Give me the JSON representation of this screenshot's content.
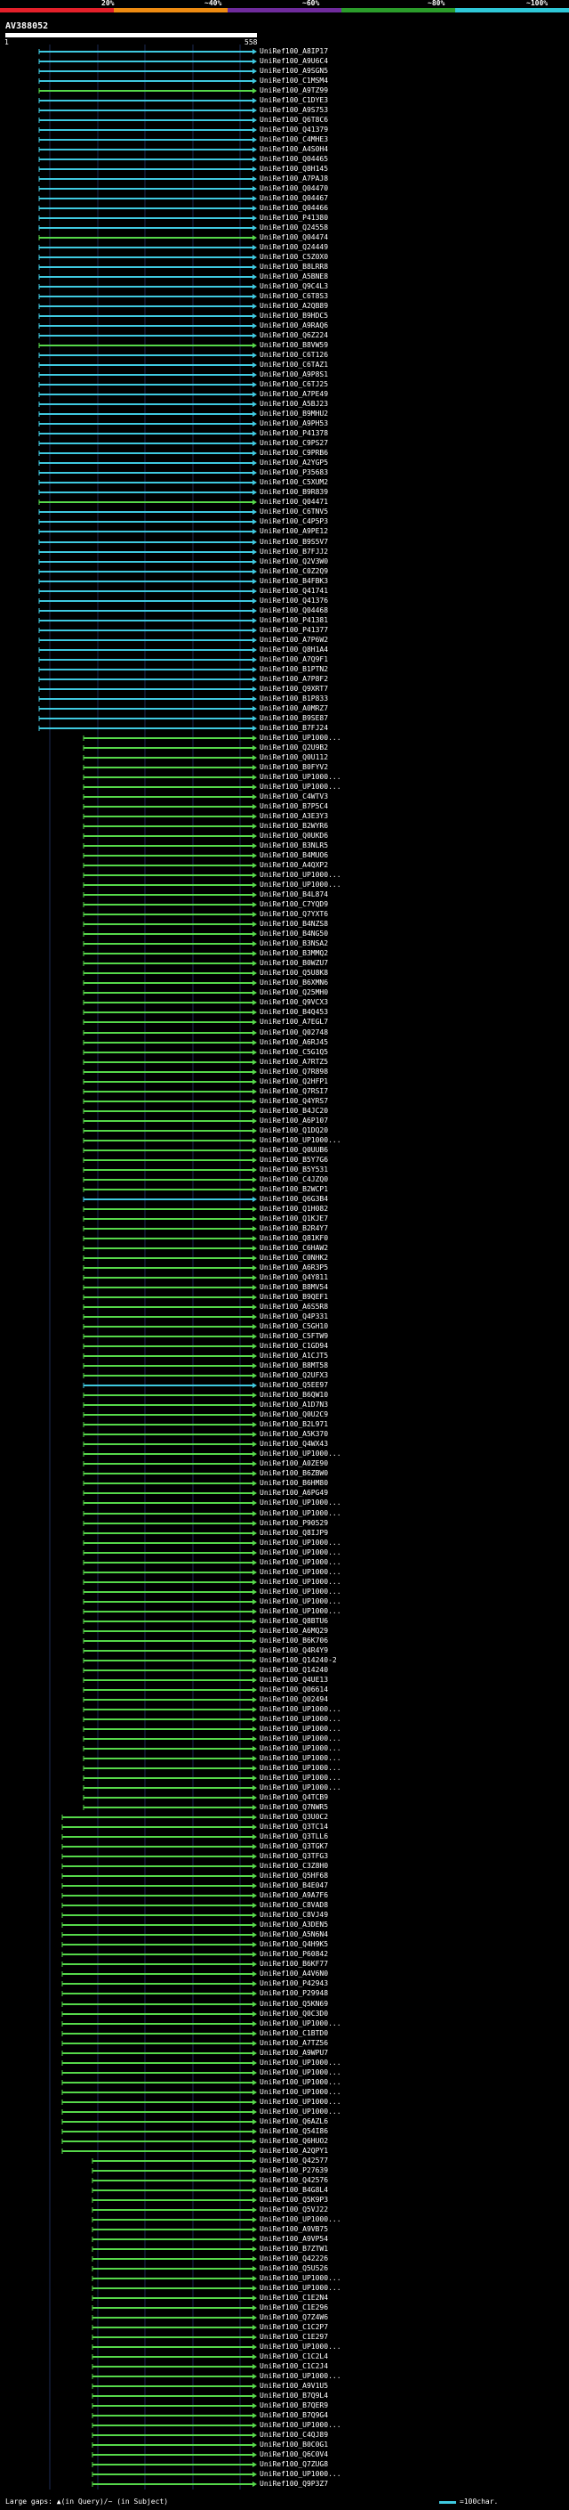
{
  "legend": {
    "pcts": [
      "20%",
      "~40%",
      "~60%",
      "~80%",
      "~100%"
    ],
    "colors": [
      "#e4202a",
      "#ee8b12",
      "#6f2b9c",
      "#2b9c2b",
      "#2fc8d8"
    ]
  },
  "query": {
    "name": "AV388052",
    "start": "1",
    "end": "558"
  },
  "footer": {
    "gaps_text": "Large gaps: ▲(in Query)/~ (in Subject)",
    "scale_text": "=100char."
  },
  "colors": {
    "green": "#56d84a",
    "cyan": "#3fc9e0"
  },
  "hits": [
    {
      "label": "UniRef100_A8IP17",
      "c": "c"
    },
    {
      "label": "UniRef100_A9U6C4",
      "c": "c"
    },
    {
      "label": "UniRef100_A9SGN5",
      "c": "c"
    },
    {
      "label": "UniRef100_C1MSM4",
      "c": "c"
    },
    {
      "label": "UniRef100_A9TZ99",
      "c": "g"
    },
    {
      "label": "UniRef100_C1DYE3",
      "c": "c"
    },
    {
      "label": "UniRef100_A9S753",
      "c": "c"
    },
    {
      "label": "UniRef100_Q6T8C6",
      "c": "c"
    },
    {
      "label": "UniRef100_Q41379",
      "c": "c"
    },
    {
      "label": "UniRef100_C4MHE3",
      "c": "c"
    },
    {
      "label": "UniRef100_A4S0H4",
      "c": "c"
    },
    {
      "label": "UniRef100_Q04465",
      "c": "c"
    },
    {
      "label": "UniRef100_Q8H145",
      "c": "c"
    },
    {
      "label": "UniRef100_A7PAJ8",
      "c": "c"
    },
    {
      "label": "UniRef100_Q04470",
      "c": "c"
    },
    {
      "label": "UniRef100_Q04467",
      "c": "c"
    },
    {
      "label": "UniRef100_Q04466",
      "c": "c"
    },
    {
      "label": "UniRef100_P41380",
      "c": "c"
    },
    {
      "label": "UniRef100_Q24558",
      "c": "c"
    },
    {
      "label": "UniRef100_Q04474",
      "c": "g"
    },
    {
      "label": "UniRef100_Q24449",
      "c": "c"
    },
    {
      "label": "UniRef100_C5Z0X0",
      "c": "c"
    },
    {
      "label": "UniRef100_B8LRR8",
      "c": "c"
    },
    {
      "label": "UniRef100_A5BNE8",
      "c": "c"
    },
    {
      "label": "UniRef100_Q9C4L3",
      "c": "c"
    },
    {
      "label": "UniRef100_C6T8S3",
      "c": "c"
    },
    {
      "label": "UniRef100_A2QB89",
      "c": "c"
    },
    {
      "label": "UniRef100_B9HDC5",
      "c": "c"
    },
    {
      "label": "UniRef100_A9RAQ6",
      "c": "c"
    },
    {
      "label": "UniRef100_Q6Z224",
      "c": "c"
    },
    {
      "label": "UniRef100_B8VW59",
      "c": "g"
    },
    {
      "label": "UniRef100_C6T126",
      "c": "c"
    },
    {
      "label": "UniRef100_C6TAZ1",
      "c": "c"
    },
    {
      "label": "UniRef100_A9P8S1",
      "c": "c"
    },
    {
      "label": "UniRef100_C6TJ25",
      "c": "c"
    },
    {
      "label": "UniRef100_A7PE49",
      "c": "c"
    },
    {
      "label": "UniRef100_A5BJ23",
      "c": "c"
    },
    {
      "label": "UniRef100_B9MHU2",
      "c": "c"
    },
    {
      "label": "UniRef100_A9PH53",
      "c": "c"
    },
    {
      "label": "UniRef100_P41378",
      "c": "c"
    },
    {
      "label": "UniRef100_C9PS27",
      "c": "c"
    },
    {
      "label": "UniRef100_C9PRB6",
      "c": "c"
    },
    {
      "label": "UniRef100_A2YGP5",
      "c": "c"
    },
    {
      "label": "UniRef100_P35683",
      "c": "c"
    },
    {
      "label": "UniRef100_C5XUM2",
      "c": "c"
    },
    {
      "label": "UniRef100_B9R839",
      "c": "c"
    },
    {
      "label": "UniRef100_Q04471",
      "c": "g"
    },
    {
      "label": "UniRef100_C6TNV5",
      "c": "c"
    },
    {
      "label": "UniRef100_C4P5P3",
      "c": "c"
    },
    {
      "label": "UniRef100_A9PE12",
      "c": "c"
    },
    {
      "label": "UniRef100_B9S5V7",
      "c": "c"
    },
    {
      "label": "UniRef100_B7FJJ2",
      "c": "c"
    },
    {
      "label": "UniRef100_Q2V3W0",
      "c": "c"
    },
    {
      "label": "UniRef100_C0Z2Q9",
      "c": "c"
    },
    {
      "label": "UniRef100_B4FBK3",
      "c": "c"
    },
    {
      "label": "UniRef100_Q41741",
      "c": "c"
    },
    {
      "label": "UniRef100_Q41376",
      "c": "c"
    },
    {
      "label": "UniRef100_Q04468",
      "c": "c"
    },
    {
      "label": "UniRef100_P41381",
      "c": "c"
    },
    {
      "label": "UniRef100_P41377",
      "c": "c"
    },
    {
      "label": "UniRef100_A7P6W2",
      "c": "c"
    },
    {
      "label": "UniRef100_Q8H1A4",
      "c": "c"
    },
    {
      "label": "UniRef100_A7Q9F1",
      "c": "c"
    },
    {
      "label": "UniRef100_B1PTN2",
      "c": "c"
    },
    {
      "label": "UniRef100_A7P8F2",
      "c": "c"
    },
    {
      "label": "UniRef100_Q9XRT7",
      "c": "c"
    },
    {
      "label": "UniRef100_B1P833",
      "c": "c"
    },
    {
      "label": "UniRef100_A0MRZ7",
      "c": "c"
    },
    {
      "label": "UniRef100_B9SE87",
      "c": "c"
    },
    {
      "label": "UniRef100_B7FJ24",
      "c": "c"
    },
    {
      "label": "UniRef100_UP1000...",
      "c": "g"
    },
    {
      "label": "UniRef100_Q2U9B2",
      "c": "g"
    },
    {
      "label": "UniRef100_Q0U112",
      "c": "g"
    },
    {
      "label": "UniRef100_B0FYV2",
      "c": "g"
    },
    {
      "label": "UniRef100_UP1000...",
      "c": "g"
    },
    {
      "label": "UniRef100_UP1000...",
      "c": "g"
    },
    {
      "label": "UniRef100_C4WTV3",
      "c": "g"
    },
    {
      "label": "UniRef100_B7P5C4",
      "c": "g"
    },
    {
      "label": "UniRef100_A3E3Y3",
      "c": "g"
    },
    {
      "label": "UniRef100_B2WYR6",
      "c": "g"
    },
    {
      "label": "UniRef100_Q0UKD6",
      "c": "g"
    },
    {
      "label": "UniRef100_B3NLR5",
      "c": "g"
    },
    {
      "label": "UniRef100_B4MUO6",
      "c": "g"
    },
    {
      "label": "UniRef100_A4QXP2",
      "c": "g"
    },
    {
      "label": "UniRef100_UP1000...",
      "c": "g"
    },
    {
      "label": "UniRef100_UP1000...",
      "c": "g"
    },
    {
      "label": "UniRef100_B4L874",
      "c": "g"
    },
    {
      "label": "UniRef100_C7YQD9",
      "c": "g"
    },
    {
      "label": "UniRef100_Q7YXT6",
      "c": "g"
    },
    {
      "label": "UniRef100_B4NZS8",
      "c": "g"
    },
    {
      "label": "UniRef100_B4NG50",
      "c": "g"
    },
    {
      "label": "UniRef100_B3NSA2",
      "c": "g"
    },
    {
      "label": "UniRef100_B3MMQ2",
      "c": "g"
    },
    {
      "label": "UniRef100_B0WZU7",
      "c": "g"
    },
    {
      "label": "UniRef100_Q5U8K8",
      "c": "g"
    },
    {
      "label": "UniRef100_B6XMN6",
      "c": "g"
    },
    {
      "label": "UniRef100_Q25MH0",
      "c": "g"
    },
    {
      "label": "UniRef100_Q9VCX3",
      "c": "g"
    },
    {
      "label": "UniRef100_B4Q453",
      "c": "g"
    },
    {
      "label": "UniRef100_A7EGL7",
      "c": "g"
    },
    {
      "label": "UniRef100_Q02748",
      "c": "g"
    },
    {
      "label": "UniRef100_A6RJ45",
      "c": "g"
    },
    {
      "label": "UniRef100_C5G1Q5",
      "c": "g"
    },
    {
      "label": "UniRef100_A7RTZ5",
      "c": "g"
    },
    {
      "label": "UniRef100_Q7R898",
      "c": "g"
    },
    {
      "label": "UniRef100_Q2HFP1",
      "c": "g"
    },
    {
      "label": "UniRef100_Q7RSI7",
      "c": "g"
    },
    {
      "label": "UniRef100_Q4YRS7",
      "c": "g"
    },
    {
      "label": "UniRef100_B4JC20",
      "c": "g"
    },
    {
      "label": "UniRef100_A6P107",
      "c": "g"
    },
    {
      "label": "UniRef100_Q1DQ20",
      "c": "g"
    },
    {
      "label": "UniRef100_UP1000...",
      "c": "g"
    },
    {
      "label": "UniRef100_Q0UUB6",
      "c": "g"
    },
    {
      "label": "UniRef100_B5Y7G6",
      "c": "g"
    },
    {
      "label": "UniRef100_B5Y531",
      "c": "g"
    },
    {
      "label": "UniRef100_C4JZQ0",
      "c": "g"
    },
    {
      "label": "UniRef100_B2WCP1",
      "c": "g"
    },
    {
      "label": "UniRef100_Q6G3B4",
      "c": "c"
    },
    {
      "label": "UniRef100_Q1H082",
      "c": "g"
    },
    {
      "label": "UniRef100_Q1KJE7",
      "c": "g"
    },
    {
      "label": "UniRef100_B2R4Y7",
      "c": "g"
    },
    {
      "label": "UniRef100_Q81KF0",
      "c": "g"
    },
    {
      "label": "UniRef100_C6HAW2",
      "c": "g"
    },
    {
      "label": "UniRef100_C0NHK2",
      "c": "g"
    },
    {
      "label": "UniRef100_A6R3P5",
      "c": "g"
    },
    {
      "label": "UniRef100_Q4Y811",
      "c": "g"
    },
    {
      "label": "UniRef100_B8MV54",
      "c": "g"
    },
    {
      "label": "UniRef100_B9QEF1",
      "c": "g"
    },
    {
      "label": "UniRef100_A6S5R8",
      "c": "g"
    },
    {
      "label": "UniRef100_Q4P331",
      "c": "g"
    },
    {
      "label": "UniRef100_C5GH10",
      "c": "g"
    },
    {
      "label": "UniRef100_C5FTW9",
      "c": "g"
    },
    {
      "label": "UniRef100_C1GD94",
      "c": "g"
    },
    {
      "label": "UniRef100_A1CJT5",
      "c": "g"
    },
    {
      "label": "UniRef100_B8MT58",
      "c": "g"
    },
    {
      "label": "UniRef100_Q2UFX3",
      "c": "g"
    },
    {
      "label": "UniRef100_Q5EE97",
      "c": "c"
    },
    {
      "label": "UniRef100_B6QW10",
      "c": "g"
    },
    {
      "label": "UniRef100_A1D7N3",
      "c": "g"
    },
    {
      "label": "UniRef100_Q0U2C9",
      "c": "g"
    },
    {
      "label": "UniRef100_B2L971",
      "c": "g"
    },
    {
      "label": "UniRef100_A5K370",
      "c": "g"
    },
    {
      "label": "UniRef100_Q4WX43",
      "c": "g"
    },
    {
      "label": "UniRef100_UP1000...",
      "c": "g"
    },
    {
      "label": "UniRef100_A0ZE90",
      "c": "g"
    },
    {
      "label": "UniRef100_B6ZBW0",
      "c": "g"
    },
    {
      "label": "UniRef100_B6HM80",
      "c": "g"
    },
    {
      "label": "UniRef100_A6PG49",
      "c": "g"
    },
    {
      "label": "UniRef100_UP1000...",
      "c": "g"
    },
    {
      "label": "UniRef100_UP1000...",
      "c": "g"
    },
    {
      "label": "UniRef100_P90529",
      "c": "g"
    },
    {
      "label": "UniRef100_Q8IJP9",
      "c": "g"
    },
    {
      "label": "UniRef100_UP1000...",
      "c": "g"
    },
    {
      "label": "UniRef100_UP1000...",
      "c": "g"
    },
    {
      "label": "UniRef100_UP1000...",
      "c": "g"
    },
    {
      "label": "UniRef100_UP1000...",
      "c": "g"
    },
    {
      "label": "UniRef100_UP1000...",
      "c": "g"
    },
    {
      "label": "UniRef100_UP1000...",
      "c": "g"
    },
    {
      "label": "UniRef100_UP1000...",
      "c": "g"
    },
    {
      "label": "UniRef100_UP1000...",
      "c": "g"
    },
    {
      "label": "UniRef100_Q8BTU6",
      "c": "g"
    },
    {
      "label": "UniRef100_A6MQ29",
      "c": "g"
    },
    {
      "label": "UniRef100_B6K706",
      "c": "g"
    },
    {
      "label": "UniRef100_Q4R4Y9",
      "c": "g"
    },
    {
      "label": "UniRef100_Q14240-2",
      "c": "g"
    },
    {
      "label": "UniRef100_Q14240",
      "c": "g"
    },
    {
      "label": "UniRef100_Q4UE13",
      "c": "g"
    },
    {
      "label": "UniRef100_Q06614",
      "c": "g"
    },
    {
      "label": "UniRef100_Q02494",
      "c": "g"
    },
    {
      "label": "UniRef100_UP1000...",
      "c": "g"
    },
    {
      "label": "UniRef100_UP1000...",
      "c": "g"
    },
    {
      "label": "UniRef100_UP1000...",
      "c": "g"
    },
    {
      "label": "UniRef100_UP1000...",
      "c": "g"
    },
    {
      "label": "UniRef100_UP1000...",
      "c": "g"
    },
    {
      "label": "UniRef100_UP1000...",
      "c": "g"
    },
    {
      "label": "UniRef100_UP1000...",
      "c": "g"
    },
    {
      "label": "UniRef100_UP1000...",
      "c": "g"
    },
    {
      "label": "UniRef100_UP1000...",
      "c": "g"
    },
    {
      "label": "UniRef100_Q4TCB9",
      "c": "g"
    },
    {
      "label": "UniRef100_Q7NWR5",
      "c": "g"
    },
    {
      "label": "UniRef100_Q3U0C2",
      "c": "g"
    },
    {
      "label": "UniRef100_Q3TC14",
      "c": "g"
    },
    {
      "label": "UniRef100_Q3TLL6",
      "c": "g"
    },
    {
      "label": "UniRef100_Q3TGK7",
      "c": "g"
    },
    {
      "label": "UniRef100_Q3TFG3",
      "c": "g"
    },
    {
      "label": "UniRef100_C3Z8H0",
      "c": "g"
    },
    {
      "label": "UniRef100_Q5HF68",
      "c": "g"
    },
    {
      "label": "UniRef100_B4E047",
      "c": "g"
    },
    {
      "label": "UniRef100_A9A7F6",
      "c": "g"
    },
    {
      "label": "UniRef100_C8VAD8",
      "c": "g"
    },
    {
      "label": "UniRef100_C8VJ49",
      "c": "g"
    },
    {
      "label": "UniRef100_A3DEN5",
      "c": "g"
    },
    {
      "label": "UniRef100_A5N6N4",
      "c": "g"
    },
    {
      "label": "UniRef100_Q4H9K5",
      "c": "g"
    },
    {
      "label": "UniRef100_P60842",
      "c": "g"
    },
    {
      "label": "UniRef100_B6KF77",
      "c": "g"
    },
    {
      "label": "UniRef100_A4V6N0",
      "c": "g"
    },
    {
      "label": "UniRef100_P42943",
      "c": "g"
    },
    {
      "label": "UniRef100_P29948",
      "c": "g"
    },
    {
      "label": "UniRef100_Q5KN69",
      "c": "g"
    },
    {
      "label": "UniRef100_Q0C3D0",
      "c": "g"
    },
    {
      "label": "UniRef100_UP1000...",
      "c": "g"
    },
    {
      "label": "UniRef100_C1BTD0",
      "c": "g"
    },
    {
      "label": "UniRef100_A7TZ56",
      "c": "g"
    },
    {
      "label": "UniRef100_A9WPU7",
      "c": "g"
    },
    {
      "label": "UniRef100_UP1000...",
      "c": "g"
    },
    {
      "label": "UniRef100_UP1000...",
      "c": "g"
    },
    {
      "label": "UniRef100_UP1000...",
      "c": "g"
    },
    {
      "label": "UniRef100_UP1000...",
      "c": "g"
    },
    {
      "label": "UniRef100_UP1000...",
      "c": "g"
    },
    {
      "label": "UniRef100_UP1000...",
      "c": "g"
    },
    {
      "label": "UniRef100_Q6AZL6",
      "c": "g"
    },
    {
      "label": "UniRef100_Q54I86",
      "c": "g"
    },
    {
      "label": "UniRef100_Q6HUO2",
      "c": "g"
    },
    {
      "label": "UniRef100_A2QPY1",
      "c": "g"
    },
    {
      "label": "UniRef100_Q42577",
      "c": "g"
    },
    {
      "label": "UniRef100_P27639",
      "c": "g"
    },
    {
      "label": "UniRef100_Q42576",
      "c": "g"
    },
    {
      "label": "UniRef100_B4G8L4",
      "c": "g"
    },
    {
      "label": "UniRef100_Q5K9P3",
      "c": "g"
    },
    {
      "label": "UniRef100_Q5VJ22",
      "c": "g"
    },
    {
      "label": "UniRef100_UP1000...",
      "c": "g"
    },
    {
      "label": "UniRef100_A9VB75",
      "c": "g"
    },
    {
      "label": "UniRef100_A9VP54",
      "c": "g"
    },
    {
      "label": "UniRef100_B7ZTW1",
      "c": "g"
    },
    {
      "label": "UniRef100_Q42226",
      "c": "g"
    },
    {
      "label": "UniRef100_Q5U526",
      "c": "g"
    },
    {
      "label": "UniRef100_UP1000...",
      "c": "g"
    },
    {
      "label": "UniRef100_UP1000...",
      "c": "g"
    },
    {
      "label": "UniRef100_C1E2N4",
      "c": "g"
    },
    {
      "label": "UniRef100_C1E296",
      "c": "g"
    },
    {
      "label": "UniRef100_Q7Z4W6",
      "c": "g"
    },
    {
      "label": "UniRef100_C1C2P7",
      "c": "g"
    },
    {
      "label": "UniRef100_C1E297",
      "c": "g"
    },
    {
      "label": "UniRef100_UP1000...",
      "c": "g"
    },
    {
      "label": "UniRef100_C1C2L4",
      "c": "g"
    },
    {
      "label": "UniRef100_C1C2J4",
      "c": "g"
    },
    {
      "label": "UniRef100_UP1000...",
      "c": "g"
    },
    {
      "label": "UniRef100_A9V1U5",
      "c": "g"
    },
    {
      "label": "UniRef100_B7Q9L4",
      "c": "g"
    },
    {
      "label": "UniRef100_B7QER9",
      "c": "g"
    },
    {
      "label": "UniRef100_B7Q9G4",
      "c": "g"
    },
    {
      "label": "UniRef100_UP1000...",
      "c": "g"
    },
    {
      "label": "UniRef100_C4QJ89",
      "c": "g"
    },
    {
      "label": "UniRef100_B0C0G1",
      "c": "g"
    },
    {
      "label": "UniRef100_Q6C0V4",
      "c": "g"
    },
    {
      "label": "UniRef100_Q7ZUG8",
      "c": "g"
    },
    {
      "label": "UniRef100_UP1000...",
      "c": "g"
    },
    {
      "label": "UniRef100_Q9P3Z7",
      "c": "g"
    }
  ]
}
